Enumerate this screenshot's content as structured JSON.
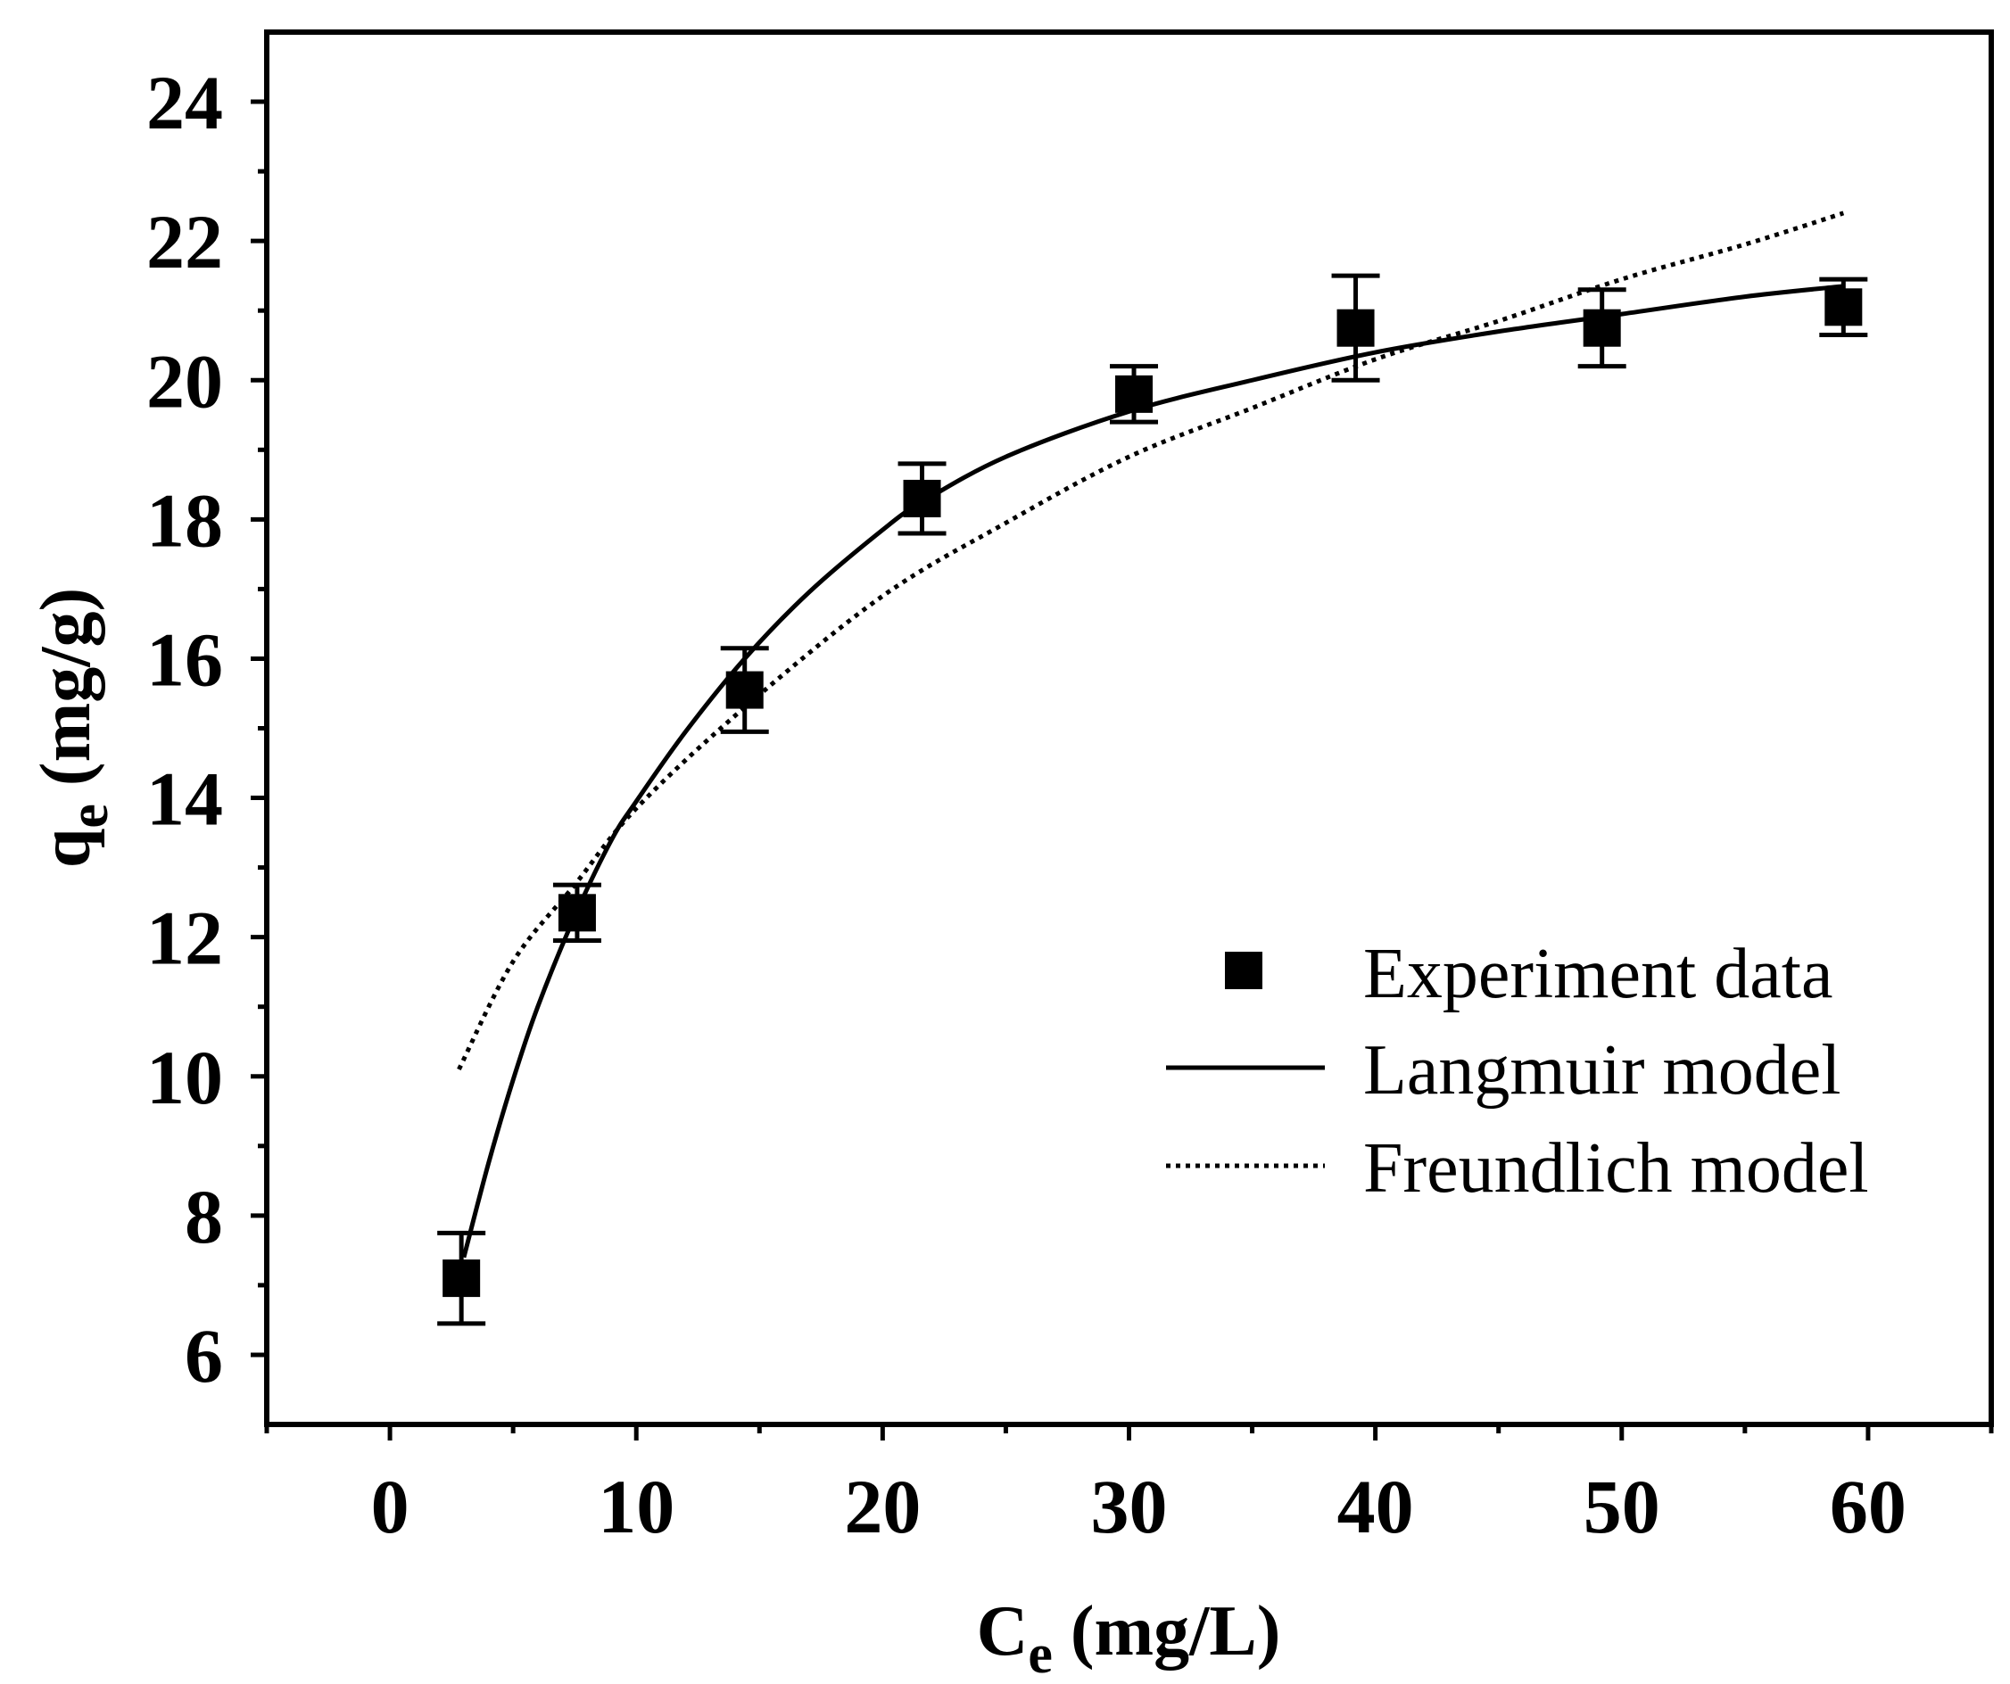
{
  "chart_data": {
    "type": "scatter",
    "xlabel": {
      "main": "C",
      "sub": "e",
      "unit": " (mg/L)"
    },
    "ylabel": {
      "main": "q",
      "sub": "e",
      "unit": " (mg/g)"
    },
    "xlim": [
      -5,
      65
    ],
    "ylim": [
      5,
      25
    ],
    "xticks": [
      0,
      10,
      20,
      30,
      40,
      50,
      60
    ],
    "yticks": [
      6,
      8,
      10,
      12,
      14,
      16,
      18,
      20,
      22,
      24
    ],
    "grid": false,
    "legend_position": "lower-right",
    "series": [
      {
        "name": "Experiment data",
        "kind": "points-with-error",
        "marker": "square",
        "points": [
          {
            "x": 2.9,
            "y": 7.1,
            "err": 0.65
          },
          {
            "x": 7.6,
            "y": 12.35,
            "err": 0.4
          },
          {
            "x": 14.4,
            "y": 15.55,
            "err": 0.6
          },
          {
            "x": 21.6,
            "y": 18.3,
            "err": 0.5
          },
          {
            "x": 30.2,
            "y": 19.8,
            "err": 0.4
          },
          {
            "x": 39.2,
            "y": 20.75,
            "err": 0.75
          },
          {
            "x": 49.2,
            "y": 20.75,
            "err": 0.55
          },
          {
            "x": 59.0,
            "y": 21.05,
            "err": 0.4
          }
        ]
      },
      {
        "name": "Langmuir model",
        "kind": "line",
        "style": "solid",
        "x": [
          3,
          4,
          5,
          6,
          7.5,
          9,
          10,
          12,
          14.4,
          17,
          20,
          21.6,
          25,
          30,
          35,
          40,
          45,
          50,
          55,
          59
        ],
        "y": [
          7.4,
          8.75,
          9.95,
          11.0,
          12.3,
          13.4,
          13.95,
          14.95,
          16.0,
          16.95,
          17.85,
          18.25,
          18.9,
          19.55,
          20.0,
          20.4,
          20.7,
          20.95,
          21.2,
          21.35
        ]
      },
      {
        "name": "Freundlich model",
        "kind": "line",
        "style": "dotted",
        "x": [
          2.8,
          5,
          7.5,
          10,
          14.4,
          20,
          25,
          30,
          35,
          40,
          45,
          50,
          55,
          59
        ],
        "y": [
          10.1,
          11.65,
          12.75,
          13.85,
          15.3,
          16.9,
          17.95,
          18.9,
          19.6,
          20.3,
          20.85,
          21.45,
          21.95,
          22.4
        ]
      }
    ]
  },
  "colors": {
    "ink": "#000000",
    "background": "#ffffff"
  }
}
